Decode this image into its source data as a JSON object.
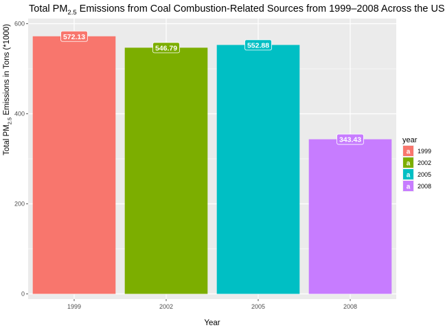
{
  "chart_data": {
    "type": "bar",
    "title_main": "Total PM",
    "title_sub": "2.5",
    "title_rest": " Emissions from Coal Combustion-Related Sources from 1999–2008 Across the US",
    "xlabel": "Year",
    "ylabel_main": "Total PM",
    "ylabel_sub": "2.5",
    "ylabel_rest": " Emissions in Tons (*1000)",
    "categories": [
      "1999",
      "2002",
      "2005",
      "2008"
    ],
    "values": [
      572.13,
      546.79,
      552.88,
      343.43
    ],
    "data_labels": [
      "572.13",
      "546.79",
      "552.88",
      "343.43"
    ],
    "colors": [
      "#F8766D",
      "#7CAE00",
      "#00BFC4",
      "#C77CFF"
    ],
    "ylim": [
      0,
      600
    ],
    "yticks": [
      0,
      200,
      400,
      600
    ],
    "grid": true,
    "legend": {
      "title": "year",
      "placement": "right",
      "key_glyph": "a",
      "entries": [
        "1999",
        "2002",
        "2005",
        "2008"
      ]
    }
  }
}
